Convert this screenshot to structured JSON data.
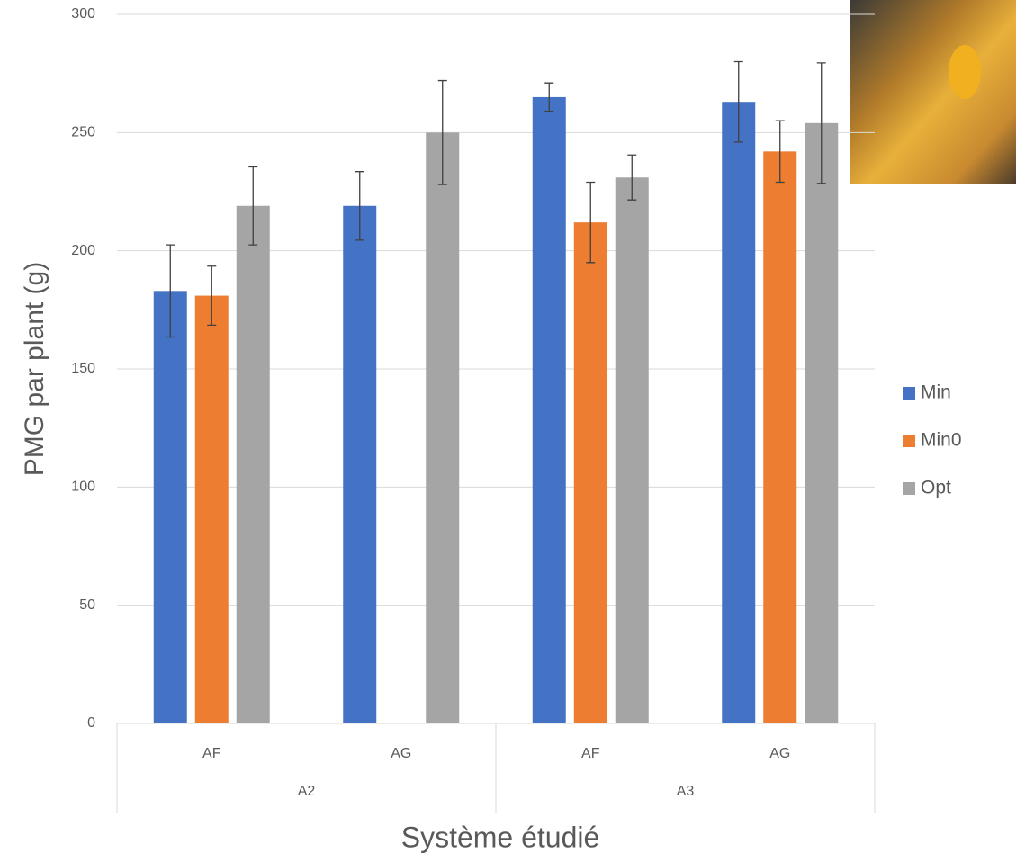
{
  "chart_data": {
    "type": "bar",
    "x_label": "Système étudié",
    "y_label": "PMG par plant (g)",
    "categories": [
      "AF",
      "AG",
      "AF",
      "AG"
    ],
    "groups": [
      "A2",
      "A3"
    ],
    "series": [
      {
        "name": "Min",
        "color": "#4472c4",
        "values": [
          183,
          219,
          265,
          263
        ],
        "errors": [
          19.5,
          14.5,
          6,
          17
        ]
      },
      {
        "name": "Min0",
        "color": "#ed7d31",
        "values": [
          181,
          null,
          212,
          242
        ],
        "errors": [
          12.5,
          null,
          17,
          13
        ]
      },
      {
        "name": "Opt",
        "color": "#a5a5a5",
        "values": [
          219,
          250,
          231,
          254
        ],
        "errors": [
          16.5,
          22,
          9.5,
          25.5
        ]
      }
    ],
    "ylim": [
      0,
      300
    ],
    "yticks": [
      0,
      50,
      100,
      150,
      200,
      250,
      300
    ],
    "grid": true,
    "legend": "right"
  }
}
